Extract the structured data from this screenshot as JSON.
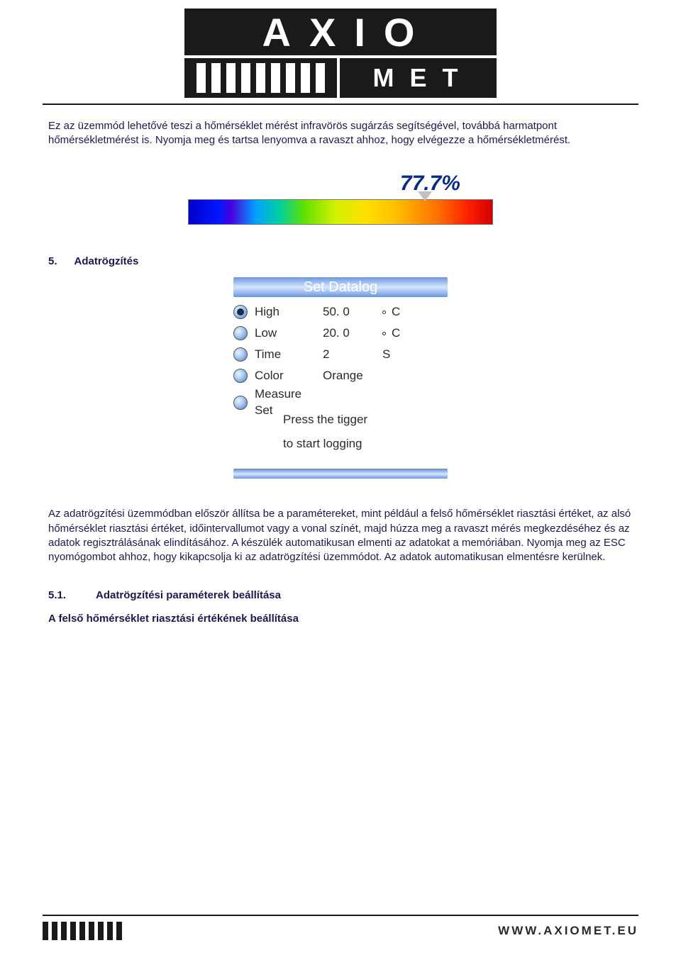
{
  "logo": {
    "top": "AXIO",
    "bottom": "MET"
  },
  "intro": "Ez az üzemmód lehetővé teszi a hőmérséklet mérést infravörös sugárzás segítségével, továbbá harmatpont hőmérsékletmérést is.  Nyomja meg és tartsa lenyomva a ravaszt ahhoz, hogy elvégezze a hőmérsékletmérést.",
  "gradient": {
    "percent_text": "77.7%",
    "percent_color": "#0a2a88",
    "pointer_pct": 77.7,
    "stops": [
      "#0000c8",
      "#0018ff",
      "#00a0ff",
      "#00d0a0",
      "#60e000",
      "#d0f000",
      "#ffe000",
      "#ffc000",
      "#ff7000",
      "#ff2000",
      "#d00000"
    ]
  },
  "section5": {
    "num": "5.",
    "title": "Adatrögzítés"
  },
  "datalog": {
    "header": "Set Datalog",
    "rows": [
      {
        "selected": true,
        "label": "High",
        "value": "50. 0",
        "unit_deg": true,
        "unit": "C"
      },
      {
        "selected": false,
        "label": "Low",
        "value": "20. 0",
        "unit_deg": true,
        "unit": "C"
      },
      {
        "selected": false,
        "label": "Time",
        "value": "2",
        "unit_deg": false,
        "unit": "S"
      },
      {
        "selected": false,
        "label": "Color",
        "value": "Orange",
        "unit_deg": false,
        "unit": ""
      },
      {
        "selected": false,
        "label": "Measure Set",
        "value": "",
        "unit_deg": false,
        "unit": ""
      }
    ],
    "note1": "Press the tigger",
    "note2": "to start logging"
  },
  "body5": "Az adatrögzítési üzemmódban először állítsa be a paramétereket, mint például a felső hőmérséklet riasztási értéket, az alsó hőmérséklet riasztási értéket, időintervallumot vagy a vonal színét, majd húzza meg a ravaszt mérés megkezdéséhez és az adatok regisztrálásának elindításához.  A készülék automatikusan elmenti az adatokat a memóriában.  Nyomja meg az ESC nyomógombot ahhoz, hogy kikapcsolja ki az adatrögzítési üzemmódot.  Az adatok automatikusan elmentésre kerülnek.",
  "section51": {
    "num": "5.1.",
    "title": "Adatrögzítési paraméterek beállítása"
  },
  "body51": "A felső hőmérséklet riasztási értékének beállítása",
  "footer": {
    "url": "WWW.AXIOMET.EU"
  }
}
